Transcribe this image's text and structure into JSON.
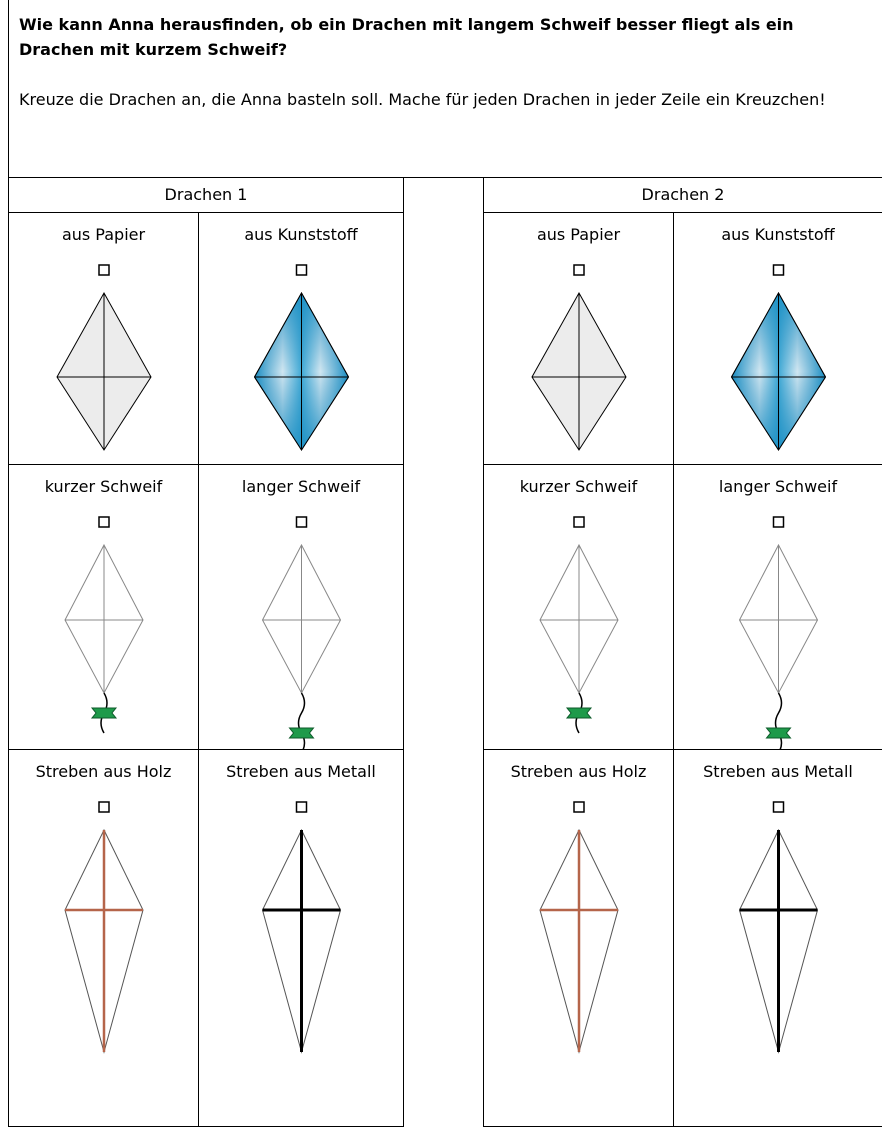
{
  "question": "Wie kann Anna herausfinden, ob ein Drachen mit langem Schweif besser fliegt als ein Drachen mit kurzem Schweif?",
  "instruction": "Kreuze die Drachen an, die Anna basteln soll. Mache für jeden Drachen in jeder Zeile ein Kreuzchen!",
  "kites": [
    {
      "title": "Drachen 1",
      "rows": [
        [
          "aus Papier",
          "aus Kunststoff"
        ],
        [
          "kurzer Schweif",
          "langer Schweif"
        ],
        [
          "Streben aus Holz",
          "Streben aus Metall"
        ]
      ]
    },
    {
      "title": "Drachen 2",
      "rows": [
        [
          "aus Papier",
          "aus Kunststoff"
        ],
        [
          "kurzer Schweif",
          "langer Schweif"
        ],
        [
          "Streben aus Holz",
          "Streben aus Metall"
        ]
      ]
    }
  ]
}
